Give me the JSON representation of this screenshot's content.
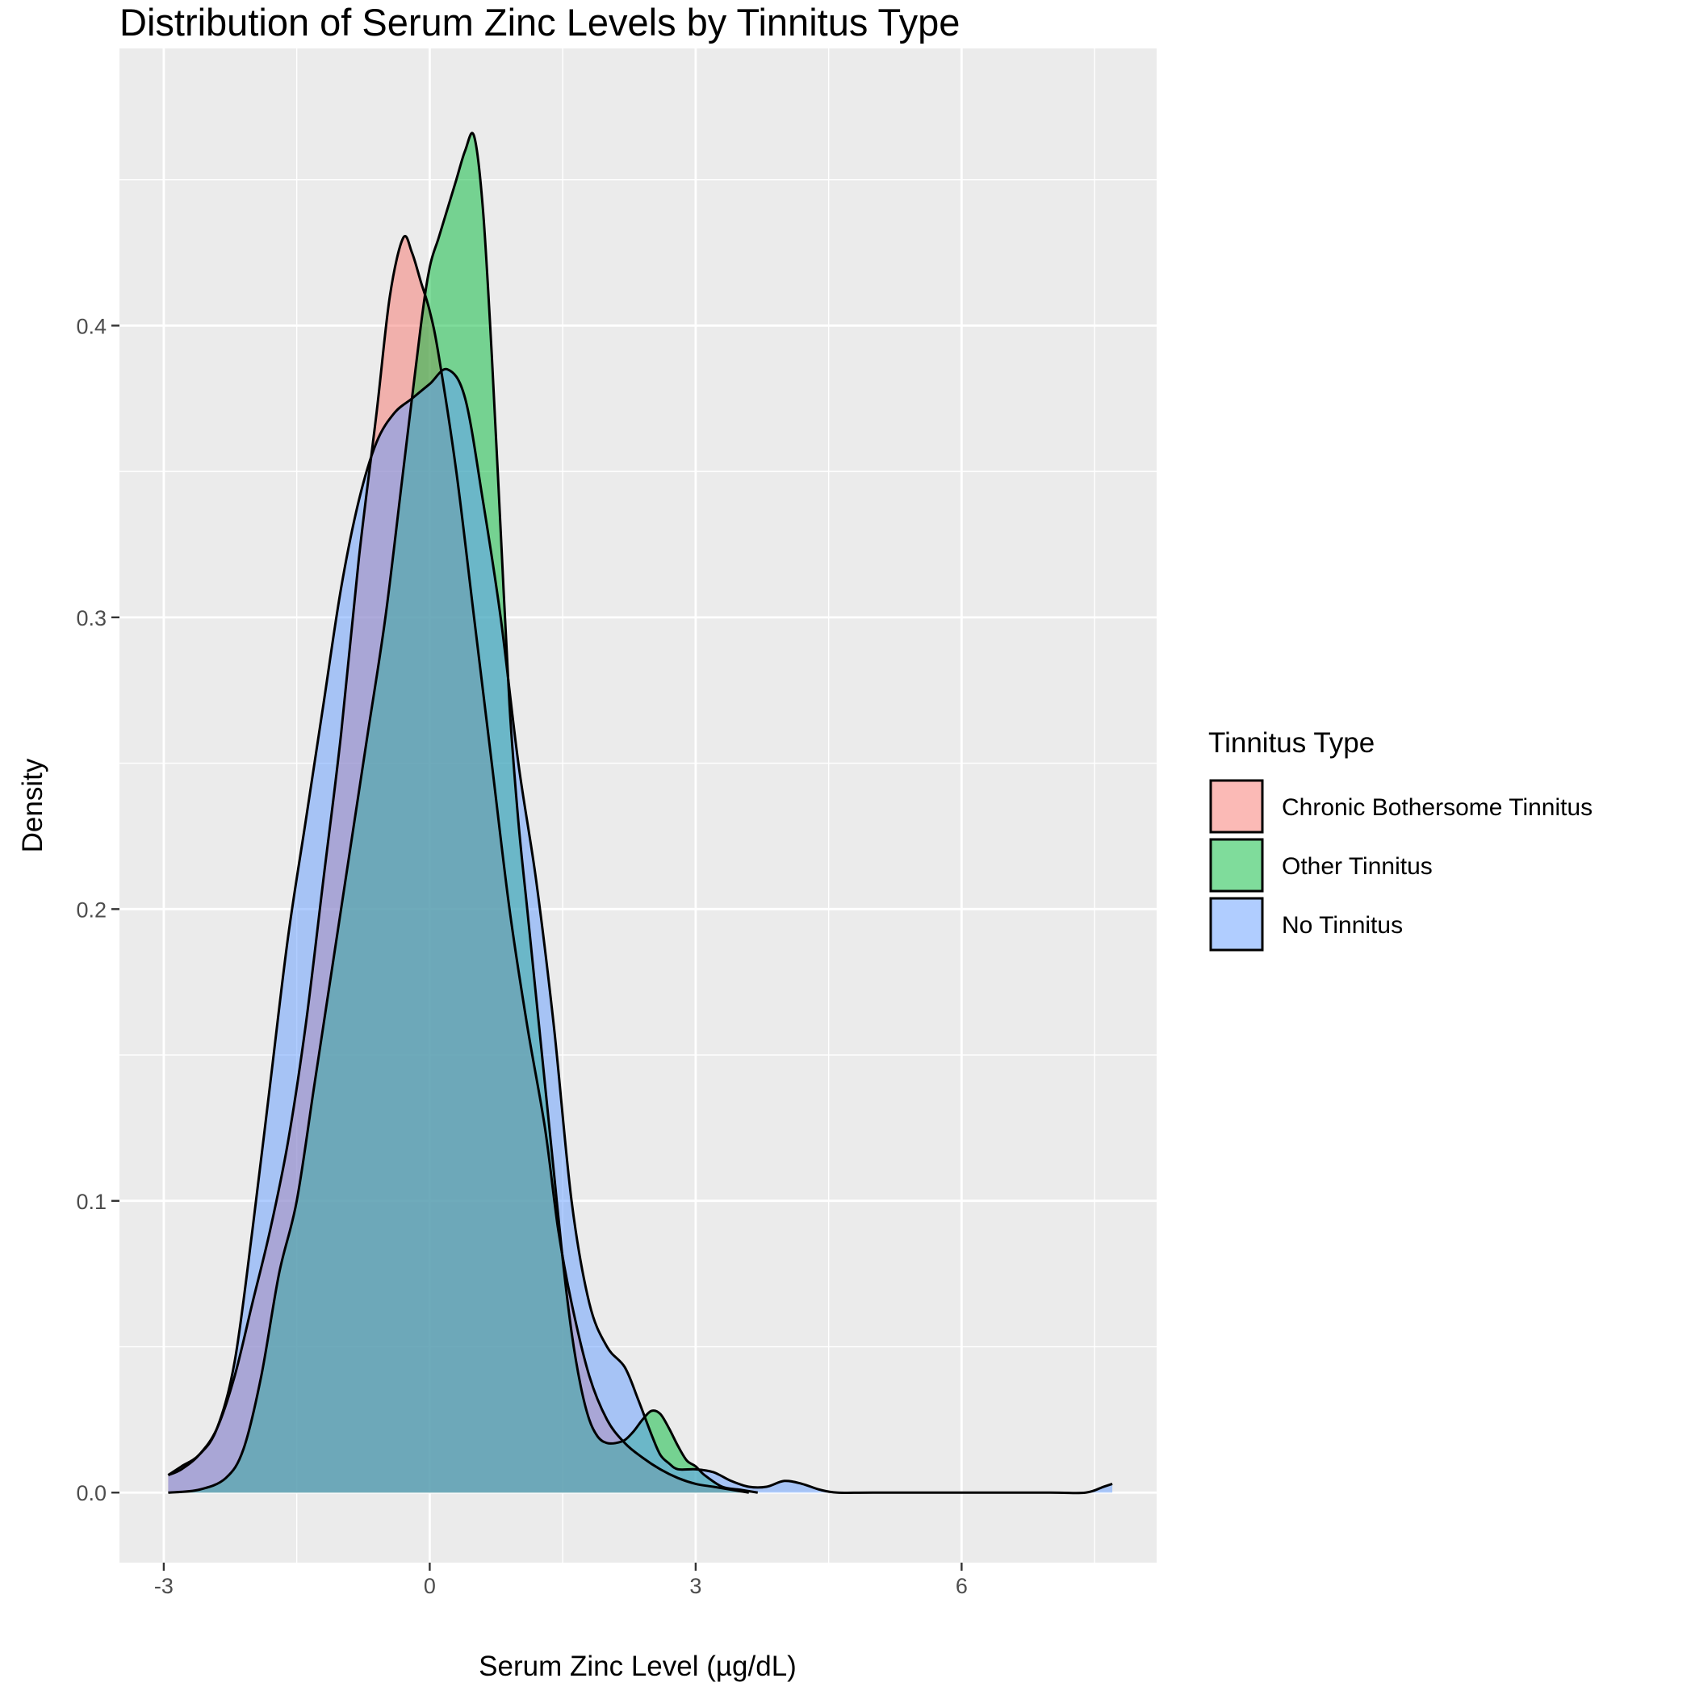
{
  "chart_data": {
    "type": "area",
    "title": "Distribution of Serum Zinc Levels by Tinnitus Type",
    "xlabel": "Serum Zinc Level (µg/dL)",
    "ylabel": "Density",
    "xlim": [
      -3.5,
      8.2
    ],
    "ylim": [
      -0.024,
      0.495
    ],
    "x_ticks": [
      -3,
      0,
      3,
      6
    ],
    "x_tick_labels": [
      "-3",
      "0",
      "3",
      "6"
    ],
    "y_ticks": [
      0.0,
      0.1,
      0.2,
      0.3,
      0.4
    ],
    "y_tick_labels": [
      "0.0",
      "0.1",
      "0.2",
      "0.3",
      "0.4"
    ],
    "grid": true,
    "legend": {
      "title": "Tinnitus Type",
      "position": "right"
    },
    "series": [
      {
        "name": "Chronic Bothersome Tinnitus",
        "color": "#F8766D",
        "x": [
          -2.95,
          -2.8,
          -2.6,
          -2.4,
          -2.2,
          -2.0,
          -1.8,
          -1.6,
          -1.4,
          -1.2,
          -1.0,
          -0.8,
          -0.6,
          -0.45,
          -0.3,
          -0.2,
          -0.1,
          0.0,
          0.1,
          0.3,
          0.5,
          0.7,
          0.9,
          1.1,
          1.3,
          1.45,
          1.6,
          1.8,
          2.0,
          2.2,
          2.4,
          2.6,
          2.8,
          3.0,
          3.2,
          3.4,
          3.6
        ],
        "y": [
          0.006,
          0.008,
          0.013,
          0.022,
          0.04,
          0.065,
          0.09,
          0.12,
          0.16,
          0.21,
          0.26,
          0.32,
          0.37,
          0.41,
          0.43,
          0.425,
          0.415,
          0.405,
          0.39,
          0.35,
          0.3,
          0.25,
          0.2,
          0.16,
          0.125,
          0.09,
          0.065,
          0.04,
          0.025,
          0.017,
          0.012,
          0.008,
          0.005,
          0.003,
          0.002,
          0.001,
          0.0
        ]
      },
      {
        "name": "Other Tinnitus",
        "color": "#00BA38",
        "x": [
          -2.95,
          -2.6,
          -2.3,
          -2.1,
          -1.9,
          -1.7,
          -1.5,
          -1.3,
          -1.1,
          -0.9,
          -0.7,
          -0.5,
          -0.3,
          -0.1,
          0.0,
          0.1,
          0.2,
          0.3,
          0.4,
          0.5,
          0.6,
          0.7,
          0.8,
          0.9,
          1.0,
          1.1,
          1.2,
          1.3,
          1.4,
          1.5,
          1.6,
          1.7,
          1.8,
          1.9,
          2.0,
          2.1,
          2.2,
          2.3,
          2.4,
          2.5,
          2.6,
          2.7,
          2.8,
          2.9,
          3.0,
          3.1,
          3.3,
          3.5,
          3.7
        ],
        "y": [
          0.0,
          0.001,
          0.005,
          0.015,
          0.04,
          0.075,
          0.1,
          0.14,
          0.18,
          0.22,
          0.26,
          0.3,
          0.35,
          0.4,
          0.42,
          0.43,
          0.44,
          0.45,
          0.46,
          0.465,
          0.44,
          0.39,
          0.33,
          0.27,
          0.23,
          0.2,
          0.17,
          0.14,
          0.11,
          0.08,
          0.055,
          0.037,
          0.025,
          0.019,
          0.017,
          0.017,
          0.018,
          0.021,
          0.025,
          0.028,
          0.027,
          0.022,
          0.016,
          0.011,
          0.009,
          0.006,
          0.002,
          0.001,
          0.0
        ]
      },
      {
        "name": "No Tinnitus",
        "color": "#619CFF",
        "x": [
          -2.95,
          -2.8,
          -2.6,
          -2.4,
          -2.2,
          -2.0,
          -1.8,
          -1.6,
          -1.4,
          -1.2,
          -1.0,
          -0.8,
          -0.6,
          -0.4,
          -0.2,
          0.0,
          0.2,
          0.4,
          0.6,
          0.8,
          1.0,
          1.2,
          1.4,
          1.6,
          1.8,
          2.0,
          2.2,
          2.35,
          2.5,
          2.6,
          2.7,
          2.8,
          3.0,
          3.2,
          3.4,
          3.6,
          3.8,
          4.0,
          4.2,
          4.4,
          4.6,
          5.0,
          6.0,
          7.0,
          7.4,
          7.6,
          7.7
        ],
        "y": [
          0.006,
          0.009,
          0.013,
          0.022,
          0.045,
          0.09,
          0.14,
          0.19,
          0.23,
          0.27,
          0.31,
          0.34,
          0.36,
          0.37,
          0.375,
          0.38,
          0.385,
          0.375,
          0.34,
          0.3,
          0.25,
          0.21,
          0.16,
          0.1,
          0.065,
          0.05,
          0.043,
          0.032,
          0.02,
          0.013,
          0.01,
          0.008,
          0.008,
          0.007,
          0.004,
          0.002,
          0.002,
          0.004,
          0.003,
          0.001,
          0.0,
          0.0,
          0.0,
          0.0,
          0.0,
          0.002,
          0.003
        ]
      }
    ]
  }
}
